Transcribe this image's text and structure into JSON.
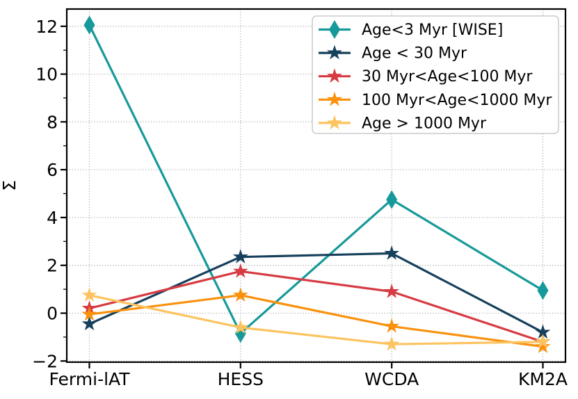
{
  "figure": {
    "background": "#ffffff",
    "axis_color": "#000000",
    "grid_color": "#b5b5b5"
  },
  "chart_data": {
    "type": "line",
    "title": "",
    "xlabel": "",
    "ylabel": "Σ",
    "categories": [
      "Fermi-lAT",
      "HESS",
      "WCDA",
      "KM2A"
    ],
    "ylim": [
      -2.05,
      12.72
    ],
    "yticks": [
      -2,
      0,
      2,
      4,
      6,
      8,
      10,
      12
    ],
    "ytick_labels": [
      "−2",
      "0",
      "2",
      "4",
      "6",
      "8",
      "10",
      "12"
    ],
    "minor_tick_step": 1,
    "grid": {
      "show": true,
      "style": "dotted"
    },
    "legend": {
      "position": "upper right",
      "border_color": "#cccccc",
      "background": "#ffffff"
    },
    "series": [
      {
        "name": "Age<3 Myr [WISE]",
        "color": "#16999a",
        "marker": "diamond",
        "values": [
          12.05,
          -0.85,
          4.75,
          0.95
        ]
      },
      {
        "name": "Age < 30 Myr",
        "color": "#17405c",
        "marker": "star",
        "values": [
          -0.45,
          2.35,
          2.5,
          -0.8
        ]
      },
      {
        "name": "30 Myr<Age<100 Myr",
        "color": "#d63b43",
        "marker": "star",
        "values": [
          0.2,
          1.75,
          0.9,
          -1.2
        ]
      },
      {
        "name": "100 Myr<Age<1000 Myr",
        "color": "#f9910d",
        "marker": "star",
        "values": [
          -0.05,
          0.75,
          -0.55,
          -1.4
        ]
      },
      {
        "name": "Age > 1000 Myr",
        "color": "#fcc35e",
        "marker": "star",
        "values": [
          0.75,
          -0.6,
          -1.3,
          -1.2
        ]
      }
    ]
  }
}
